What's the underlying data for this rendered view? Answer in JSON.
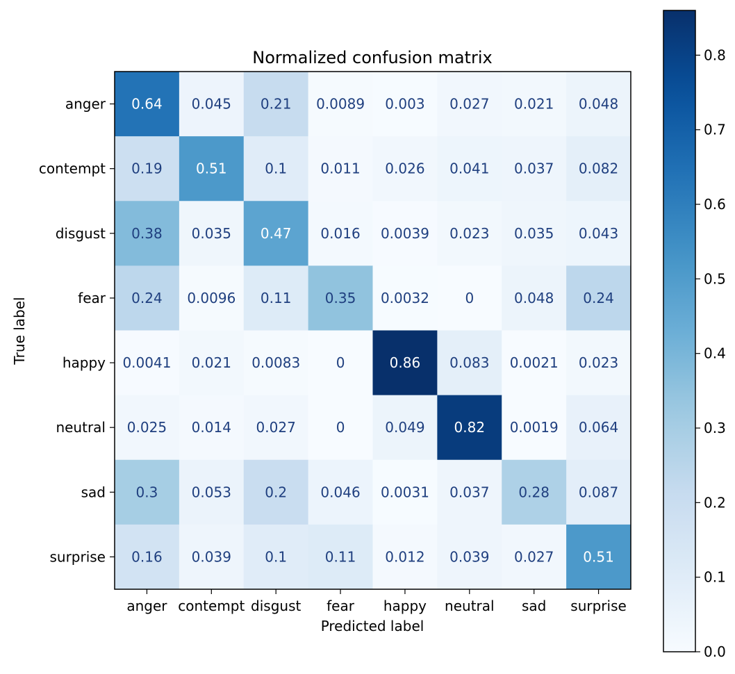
{
  "chart_data": {
    "type": "heatmap",
    "title": "Normalized confusion matrix",
    "xlabel": "Predicted label",
    "ylabel": "True label",
    "x_categories": [
      "anger",
      "contempt",
      "disgust",
      "fear",
      "happy",
      "neutral",
      "sad",
      "surprise"
    ],
    "y_categories": [
      "anger",
      "contempt",
      "disgust",
      "fear",
      "happy",
      "neutral",
      "sad",
      "surprise"
    ],
    "values": [
      [
        0.64,
        0.045,
        0.21,
        0.0089,
        0.003,
        0.027,
        0.021,
        0.048
      ],
      [
        0.19,
        0.51,
        0.1,
        0.011,
        0.026,
        0.041,
        0.037,
        0.082
      ],
      [
        0.38,
        0.035,
        0.47,
        0.016,
        0.0039,
        0.023,
        0.035,
        0.043
      ],
      [
        0.24,
        0.0096,
        0.11,
        0.35,
        0.0032,
        0,
        0.048,
        0.24
      ],
      [
        0.0041,
        0.021,
        0.0083,
        0,
        0.86,
        0.083,
        0.0021,
        0.023
      ],
      [
        0.025,
        0.014,
        0.027,
        0,
        0.049,
        0.82,
        0.0019,
        0.064
      ],
      [
        0.3,
        0.053,
        0.2,
        0.046,
        0.0031,
        0.037,
        0.28,
        0.087
      ],
      [
        0.16,
        0.039,
        0.1,
        0.11,
        0.012,
        0.039,
        0.027,
        0.51
      ]
    ],
    "colormap": "Blues",
    "colorbar_range": [
      0,
      0.86
    ],
    "colorbar_ticks": [
      "0.0",
      "0.1",
      "0.2",
      "0.3",
      "0.4",
      "0.5",
      "0.6",
      "0.7",
      "0.8"
    ],
    "text_color_dark": "#1f3f7f",
    "text_color_light": "#ffffff"
  }
}
